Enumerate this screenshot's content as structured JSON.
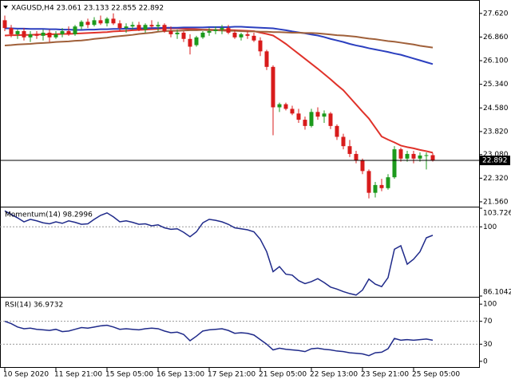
{
  "chart_data": [
    {
      "type": "candlestick",
      "title": "XAGUSD,H4  23.061 23.133 22.855 22.892",
      "categories": [
        "10 Sep 2020",
        null,
        null,
        null,
        null,
        null,
        null,
        null,
        "11 Sep 21:00",
        null,
        null,
        null,
        null,
        null,
        null,
        null,
        "15 Sep 05:00",
        null,
        null,
        null,
        null,
        null,
        null,
        null,
        "16 Sep 13:00",
        null,
        null,
        null,
        null,
        null,
        null,
        null,
        "17 Sep 21:00",
        null,
        null,
        null,
        null,
        null,
        null,
        null,
        "21 Sep 05:00",
        null,
        null,
        null,
        null,
        null,
        null,
        null,
        "22 Sep 13:00",
        null,
        null,
        null,
        null,
        null,
        null,
        null,
        "23 Sep 21:00",
        null,
        null,
        null,
        null,
        null,
        null,
        null,
        "25 Sep 05:00",
        null,
        null,
        null
      ],
      "open": [
        27.4,
        27.15,
        26.95,
        27.05,
        26.85,
        26.95,
        26.9,
        27.0,
        26.85,
        26.95,
        27.05,
        26.95,
        27.2,
        27.35,
        27.25,
        27.4,
        27.3,
        27.45,
        27.3,
        27.15,
        27.2,
        27.25,
        27.1,
        27.25,
        27.2,
        27.25,
        27.05,
        26.95,
        27.0,
        26.8,
        26.6,
        26.85,
        27.0,
        27.05,
        27.1,
        27.15,
        27.0,
        26.85,
        26.95,
        26.9,
        26.75,
        26.4,
        25.9,
        24.6,
        24.7,
        24.55,
        24.4,
        24.2,
        24.0,
        24.45,
        24.3,
        24.4,
        24.0,
        23.65,
        23.35,
        23.1,
        22.9,
        22.55,
        21.85,
        22.1,
        22.0,
        22.35,
        23.25,
        22.95,
        23.1,
        22.95,
        23.05,
        23.061
      ],
      "high": [
        27.55,
        27.25,
        27.1,
        27.15,
        27.05,
        27.05,
        27.1,
        27.1,
        27.05,
        27.15,
        27.2,
        27.25,
        27.4,
        27.45,
        27.5,
        27.55,
        27.5,
        27.62,
        27.4,
        27.3,
        27.35,
        27.35,
        27.3,
        27.4,
        27.35,
        27.3,
        27.2,
        27.1,
        27.05,
        26.95,
        26.9,
        27.05,
        27.15,
        27.2,
        27.25,
        27.25,
        27.1,
        27.0,
        27.05,
        27.0,
        26.85,
        26.45,
        25.95,
        24.75,
        24.75,
        24.65,
        24.55,
        24.3,
        24.55,
        24.6,
        24.5,
        24.45,
        24.05,
        23.75,
        23.55,
        23.2,
        22.95,
        22.6,
        22.2,
        22.3,
        22.45,
        23.35,
        23.3,
        23.2,
        23.2,
        23.15,
        23.15,
        23.133
      ],
      "low": [
        27.05,
        26.85,
        26.8,
        26.75,
        26.7,
        26.8,
        26.75,
        26.7,
        26.8,
        26.85,
        26.9,
        26.9,
        27.1,
        27.15,
        27.2,
        27.25,
        27.2,
        27.25,
        27.05,
        27.0,
        27.1,
        27.05,
        27.0,
        27.15,
        27.05,
        27.0,
        26.85,
        26.8,
        26.7,
        26.3,
        26.55,
        26.8,
        26.9,
        26.95,
        26.95,
        26.95,
        26.8,
        26.75,
        26.8,
        26.7,
        26.25,
        25.8,
        23.7,
        24.45,
        24.5,
        24.35,
        24.1,
        23.88,
        23.95,
        24.2,
        24.1,
        23.9,
        23.55,
        23.25,
        23.0,
        22.8,
        22.45,
        21.67,
        21.7,
        21.9,
        21.95,
        22.3,
        22.85,
        22.85,
        22.8,
        22.85,
        22.6,
        22.855
      ],
      "close": [
        27.15,
        26.95,
        27.05,
        26.85,
        26.95,
        26.9,
        27.0,
        26.85,
        26.95,
        27.05,
        26.95,
        27.2,
        27.35,
        27.25,
        27.4,
        27.3,
        27.45,
        27.3,
        27.15,
        27.2,
        27.25,
        27.1,
        27.25,
        27.2,
        27.25,
        27.05,
        26.95,
        27.0,
        26.8,
        26.55,
        26.85,
        27.0,
        27.05,
        27.1,
        27.15,
        27.0,
        26.85,
        26.95,
        26.9,
        26.75,
        26.4,
        25.9,
        24.6,
        24.7,
        24.55,
        24.4,
        24.2,
        24.0,
        24.45,
        24.3,
        24.4,
        24.0,
        23.65,
        23.35,
        23.1,
        22.9,
        22.55,
        21.85,
        22.1,
        22.0,
        22.35,
        23.25,
        22.95,
        23.1,
        22.95,
        23.05,
        23.061,
        22.892
      ],
      "colors": {
        "up": "#1c9a1c",
        "down": "#d81b1b"
      },
      "lines": [
        {
          "color": "#e0322a",
          "values": [
            26.91,
            26.92,
            26.92,
            26.93,
            26.93,
            26.94,
            26.94,
            26.95,
            26.95,
            26.96,
            26.96,
            26.97,
            26.98,
            26.99,
            27.0,
            27.01,
            27.02,
            27.04,
            27.05,
            27.06,
            27.08,
            27.09,
            27.1,
            27.11,
            27.12,
            27.14,
            27.14,
            27.14,
            27.13,
            27.12,
            27.11,
            27.1,
            27.1,
            27.09,
            27.09,
            27.09,
            27.08,
            27.07,
            27.06,
            27.05,
            27.0,
            26.96,
            26.91,
            26.78,
            26.64,
            26.48,
            26.32,
            26.16,
            26.0,
            25.84,
            25.67,
            25.5,
            25.32,
            25.15,
            24.92,
            24.69,
            24.46,
            24.24,
            23.95,
            23.66,
            23.56,
            23.47,
            23.37,
            23.32,
            23.28,
            23.23,
            23.19,
            23.14
          ]
        },
        {
          "color": "#2b3fbf",
          "values": [
            27.14,
            27.14,
            27.13,
            27.13,
            27.12,
            27.12,
            27.12,
            27.11,
            27.11,
            27.1,
            27.1,
            27.09,
            27.09,
            27.1,
            27.1,
            27.11,
            27.11,
            27.12,
            27.12,
            27.13,
            27.13,
            27.14,
            27.14,
            27.15,
            27.15,
            27.16,
            27.16,
            27.16,
            27.17,
            27.17,
            27.17,
            27.17,
            27.18,
            27.18,
            27.18,
            27.18,
            27.19,
            27.19,
            27.18,
            27.17,
            27.16,
            27.15,
            27.14,
            27.11,
            27.08,
            27.04,
            27.01,
            26.98,
            26.94,
            26.91,
            26.86,
            26.8,
            26.75,
            26.7,
            26.64,
            26.59,
            26.55,
            26.5,
            26.46,
            26.42,
            26.38,
            26.33,
            26.29,
            26.23,
            26.17,
            26.11,
            26.05,
            25.99
          ]
        },
        {
          "color": "#a0603a",
          "values": [
            26.59,
            26.6,
            26.62,
            26.63,
            26.64,
            26.66,
            26.67,
            26.68,
            26.7,
            26.71,
            26.72,
            26.74,
            26.75,
            26.77,
            26.8,
            26.82,
            26.84,
            26.87,
            26.89,
            26.91,
            26.93,
            26.96,
            26.98,
            27.0,
            27.03,
            27.05,
            27.06,
            27.06,
            27.07,
            27.08,
            27.08,
            27.09,
            27.08,
            27.08,
            27.07,
            27.06,
            27.06,
            27.05,
            27.04,
            27.04,
            27.03,
            27.03,
            27.02,
            27.02,
            27.01,
            27.0,
            27.0,
            26.99,
            26.99,
            26.98,
            26.96,
            26.94,
            26.92,
            26.91,
            26.89,
            26.87,
            26.84,
            26.81,
            26.79,
            26.76,
            26.73,
            26.71,
            26.68,
            26.65,
            26.62,
            26.58,
            26.55,
            26.52
          ]
        }
      ],
      "last_price": 22.892,
      "ylim": [
        21.43,
        28.0
      ],
      "yticks": [
        {
          "value": 27.62,
          "label": "27.620"
        },
        {
          "value": 26.86,
          "label": "26.860"
        },
        {
          "value": 26.1,
          "label": "26.100"
        },
        {
          "value": 25.34,
          "label": "25.340"
        },
        {
          "value": 24.58,
          "label": "24.580"
        },
        {
          "value": 23.82,
          "label": "23.820"
        },
        {
          "value": 23.08,
          "label": "23.080"
        },
        {
          "value": 22.32,
          "label": "22.320"
        },
        {
          "value": 21.56,
          "label": "21.560"
        }
      ]
    },
    {
      "type": "line",
      "title": "Momentum(14) 98.2996",
      "color": "#1f2a8a",
      "values": [
        103.2,
        102.5,
        101.8,
        101.0,
        101.5,
        101.2,
        100.8,
        100.6,
        101.0,
        100.7,
        101.2,
        100.9,
        100.5,
        100.6,
        101.5,
        102.3,
        102.8,
        102.0,
        101.0,
        101.2,
        100.9,
        100.5,
        100.6,
        100.2,
        100.4,
        99.8,
        99.5,
        99.6,
        98.9,
        98.0,
        99.0,
        100.8,
        101.5,
        101.3,
        101.0,
        100.5,
        99.8,
        99.6,
        99.4,
        99.0,
        97.5,
        95.0,
        91.0,
        92.0,
        90.5,
        90.3,
        89.2,
        88.6,
        89.0,
        89.6,
        88.8,
        87.9,
        87.5,
        87.0,
        86.6,
        86.3,
        87.3,
        89.5,
        88.5,
        88.0,
        89.8,
        95.5,
        96.2,
        92.5,
        93.5,
        95.0,
        97.8,
        98.2996
      ],
      "ylim": [
        86.1042,
        103.7265
      ],
      "yticks": [
        86.1042,
        100,
        103.7265
      ],
      "levels": [
        100
      ]
    },
    {
      "type": "line",
      "title": "RSI(14) 36.9732",
      "color": "#1f2a8a",
      "values": [
        70,
        66,
        60,
        57,
        58,
        56,
        55,
        54,
        56,
        52,
        53,
        56,
        59,
        58,
        60,
        62,
        63,
        60,
        56,
        57,
        56,
        55,
        57,
        58,
        57,
        53,
        50,
        51,
        47,
        36,
        44,
        53,
        55,
        56,
        57,
        54,
        49,
        50,
        49,
        46,
        38,
        30,
        20,
        23,
        21,
        20,
        19,
        17,
        22,
        23,
        21,
        20,
        18,
        17,
        15,
        14,
        13,
        10,
        15,
        16,
        22,
        40,
        37,
        38,
        37,
        38,
        39,
        36.9732
      ],
      "ylim": [
        -10,
        110
      ],
      "yticks": [
        0,
        30,
        70,
        100
      ],
      "levels": [
        30,
        70
      ]
    }
  ]
}
